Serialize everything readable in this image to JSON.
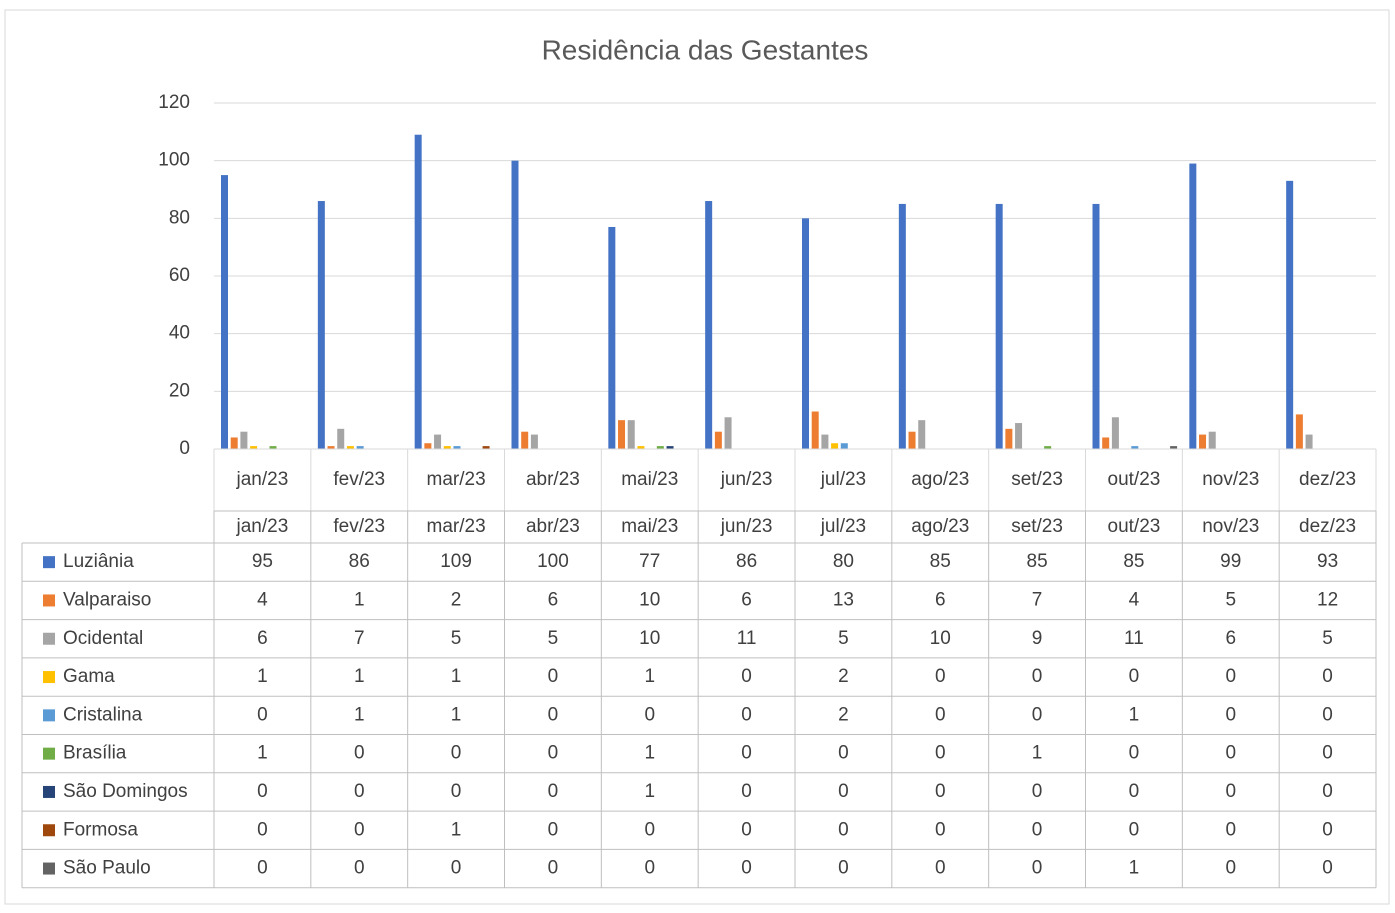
{
  "chart_data": {
    "type": "bar",
    "title": "Residência das Gestantes",
    "categories": [
      "jan/23",
      "fev/23",
      "mar/23",
      "abr/23",
      "mai/23",
      "jun/23",
      "jul/23",
      "ago/23",
      "set/23",
      "out/23",
      "nov/23",
      "dez/23"
    ],
    "series": [
      {
        "name": "Luziânia",
        "color": "#4472c4",
        "values": [
          95,
          86,
          109,
          100,
          77,
          86,
          80,
          85,
          85,
          85,
          99,
          93
        ]
      },
      {
        "name": "Valparaiso",
        "color": "#ed7d31",
        "values": [
          4,
          1,
          2,
          6,
          10,
          6,
          13,
          6,
          7,
          4,
          5,
          12
        ]
      },
      {
        "name": "Ocidental",
        "color": "#a5a5a5",
        "values": [
          6,
          7,
          5,
          5,
          10,
          11,
          5,
          10,
          9,
          11,
          6,
          5
        ]
      },
      {
        "name": "Gama",
        "color": "#ffc000",
        "values": [
          1,
          1,
          1,
          0,
          1,
          0,
          2,
          0,
          0,
          0,
          0,
          0
        ]
      },
      {
        "name": "Cristalina",
        "color": "#5b9bd5",
        "values": [
          0,
          1,
          1,
          0,
          0,
          0,
          2,
          0,
          0,
          1,
          0,
          0
        ]
      },
      {
        "name": "Brasília",
        "color": "#70ad47",
        "values": [
          1,
          0,
          0,
          0,
          1,
          0,
          0,
          0,
          1,
          0,
          0,
          0
        ]
      },
      {
        "name": "São Domingos",
        "color": "#264478",
        "values": [
          0,
          0,
          0,
          0,
          1,
          0,
          0,
          0,
          0,
          0,
          0,
          0
        ]
      },
      {
        "name": "Formosa",
        "color": "#9e480e",
        "values": [
          0,
          0,
          1,
          0,
          0,
          0,
          0,
          0,
          0,
          0,
          0,
          0
        ]
      },
      {
        "name": "São Paulo",
        "color": "#636363",
        "values": [
          0,
          0,
          0,
          0,
          0,
          0,
          0,
          0,
          0,
          1,
          0,
          0
        ]
      }
    ],
    "ylim": [
      0,
      120
    ],
    "yticks": [
      0,
      20,
      40,
      60,
      80,
      100,
      120
    ],
    "grid": true
  }
}
